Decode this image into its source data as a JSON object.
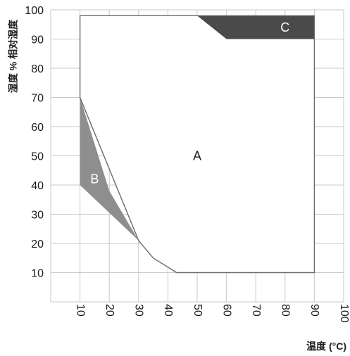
{
  "chart_data": {
    "type": "area",
    "title": "",
    "xlabel": "温度 (°C)",
    "ylabel": "湿度 % 相对湿度",
    "xlim": [
      0,
      100
    ],
    "ylim": [
      0,
      100
    ],
    "x_ticks": [
      "10",
      "20",
      "30",
      "40",
      "50",
      "60",
      "70",
      "80",
      "90",
      "100"
    ],
    "y_ticks": [
      "10",
      "20",
      "30",
      "40",
      "50",
      "60",
      "70",
      "80",
      "90",
      "100"
    ],
    "grid": true,
    "legend": "none",
    "regions": [
      {
        "label": "A",
        "color": "#ffffff",
        "text_color": "#1c1c1c",
        "label_at": [
          50,
          50
        ],
        "points": [
          [
            10,
            98
          ],
          [
            90,
            98
          ],
          [
            90,
            10
          ],
          [
            43,
            10
          ],
          [
            35,
            15
          ],
          [
            30,
            21
          ],
          [
            10,
            70
          ]
        ]
      },
      {
        "label": "B",
        "color": "#8e8e8e",
        "text_color": "#ffffff",
        "label_at": [
          15,
          42
        ],
        "points": [
          [
            10,
            70
          ],
          [
            20,
            38
          ],
          [
            30,
            21
          ],
          [
            10,
            40
          ]
        ]
      },
      {
        "label": "C",
        "color": "#4a4a4a",
        "text_color": "#ffffff",
        "label_at": [
          80,
          94
        ],
        "points": [
          [
            50,
            98
          ],
          [
            90,
            98
          ],
          [
            90,
            90
          ],
          [
            60,
            90
          ]
        ]
      }
    ]
  }
}
